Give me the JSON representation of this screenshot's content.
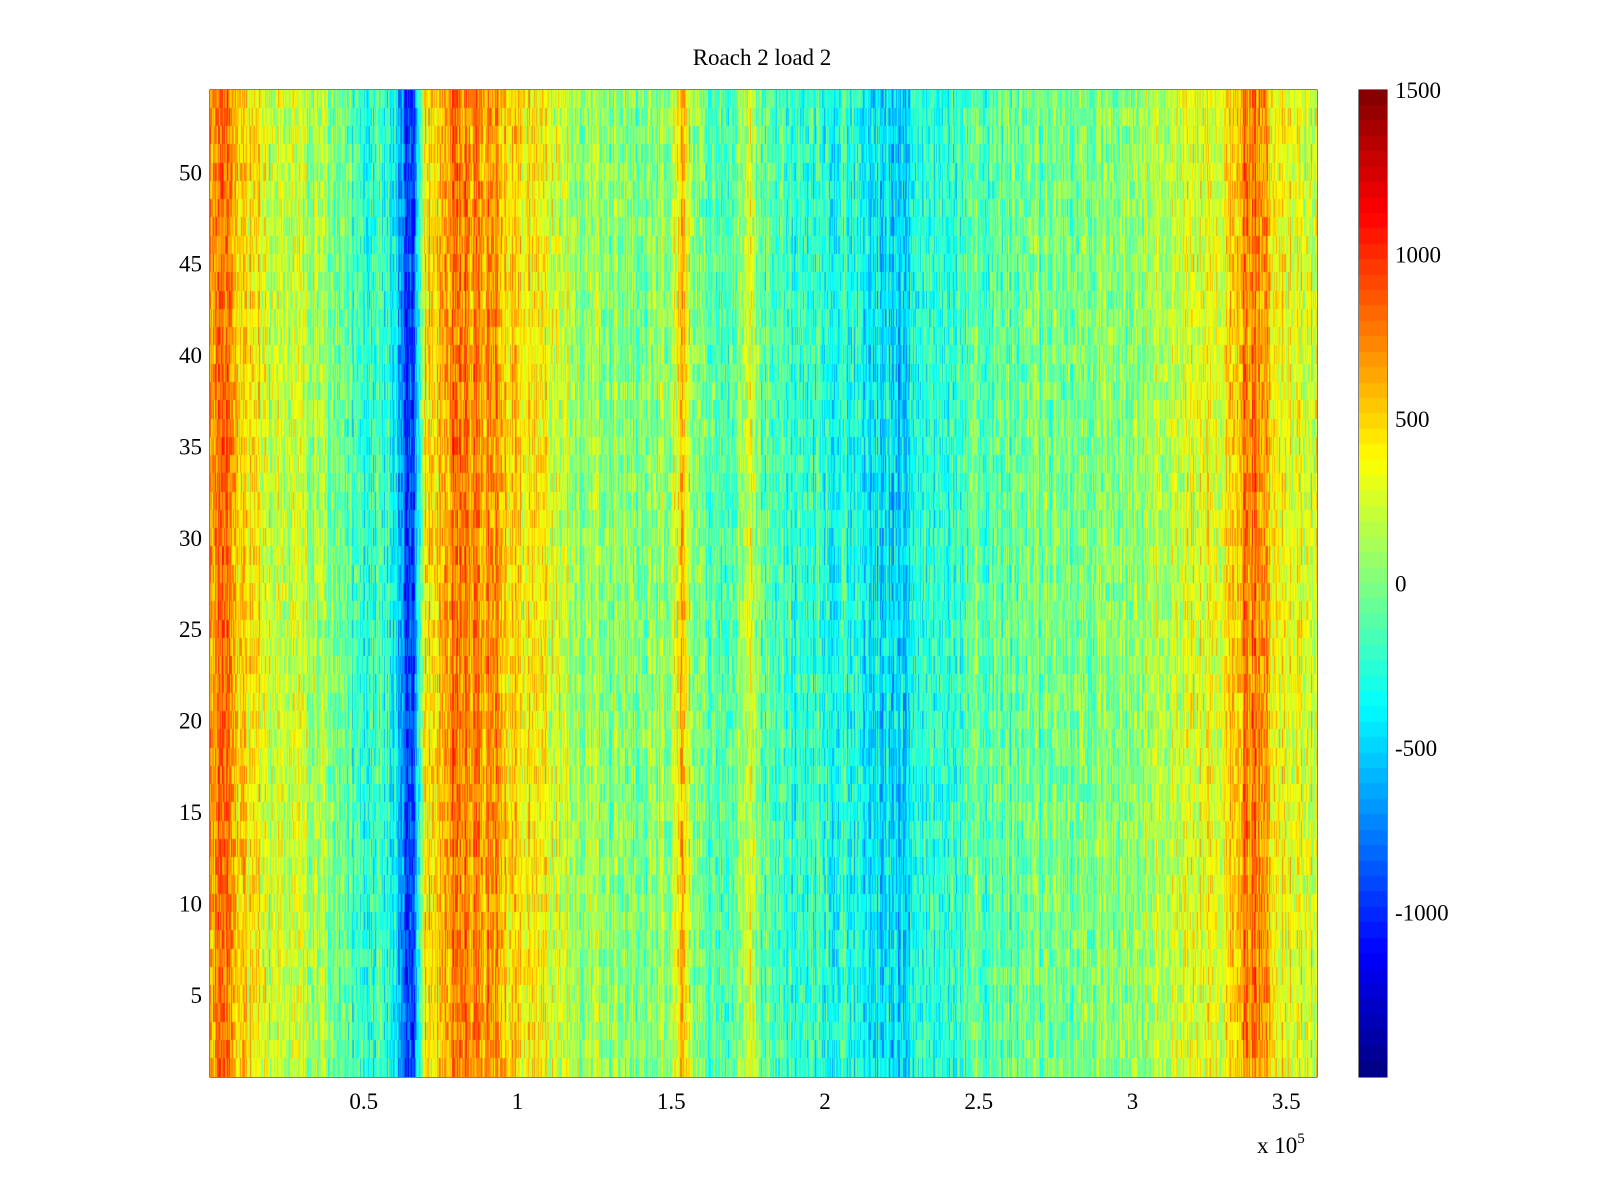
{
  "chart_data": {
    "type": "heatmap",
    "title": "Roach 2 load 2",
    "xlabel": "",
    "ylabel": "",
    "x_exponent_label": {
      "prefix": "x 10",
      "exponent": "5"
    },
    "xlim": [
      0,
      3.6
    ],
    "ylim": [
      0.5,
      54.5
    ],
    "x_ticks": [
      0.5,
      1,
      1.5,
      2,
      2.5,
      3,
      3.5
    ],
    "x_tick_labels": [
      "0.5",
      "1",
      "1.5",
      "2",
      "2.5",
      "3",
      "3.5"
    ],
    "y_ticks": [
      5,
      10,
      15,
      20,
      25,
      30,
      35,
      40,
      45,
      50
    ],
    "y_tick_labels": [
      "5",
      "10",
      "15",
      "20",
      "25",
      "30",
      "35",
      "40",
      "45",
      "50"
    ],
    "rows": 54,
    "colormap": "jet",
    "colorbar": {
      "range": [
        -1500,
        1500
      ],
      "ticks": [
        1500,
        1000,
        500,
        0,
        -500,
        -1000
      ],
      "tick_labels": [
        "1500",
        "1000",
        "500",
        "0",
        "-500",
        "-1000"
      ]
    },
    "column_profile": [
      {
        "x": 0.0,
        "value": 650
      },
      {
        "x": 0.05,
        "value": 750
      },
      {
        "x": 0.1,
        "value": 500
      },
      {
        "x": 0.2,
        "value": 250
      },
      {
        "x": 0.3,
        "value": 150
      },
      {
        "x": 0.4,
        "value": 0
      },
      {
        "x": 0.5,
        "value": -250
      },
      {
        "x": 0.55,
        "value": -200
      },
      {
        "x": 0.6,
        "value": -350
      },
      {
        "x": 0.64,
        "value": -950
      },
      {
        "x": 0.66,
        "value": -900
      },
      {
        "x": 0.7,
        "value": 450
      },
      {
        "x": 0.8,
        "value": 750
      },
      {
        "x": 0.9,
        "value": 700
      },
      {
        "x": 1.0,
        "value": 450
      },
      {
        "x": 1.1,
        "value": 300
      },
      {
        "x": 1.2,
        "value": 100
      },
      {
        "x": 1.4,
        "value": 0
      },
      {
        "x": 1.5,
        "value": 100
      },
      {
        "x": 1.54,
        "value": 650
      },
      {
        "x": 1.57,
        "value": 50
      },
      {
        "x": 1.7,
        "value": -150
      },
      {
        "x": 1.75,
        "value": 300
      },
      {
        "x": 1.8,
        "value": -150
      },
      {
        "x": 2.0,
        "value": -250
      },
      {
        "x": 2.1,
        "value": -300
      },
      {
        "x": 2.25,
        "value": -500
      },
      {
        "x": 2.3,
        "value": -300
      },
      {
        "x": 2.5,
        "value": -100
      },
      {
        "x": 2.8,
        "value": 0
      },
      {
        "x": 3.0,
        "value": 100
      },
      {
        "x": 3.2,
        "value": 250
      },
      {
        "x": 3.3,
        "value": 350
      },
      {
        "x": 3.38,
        "value": 800
      },
      {
        "x": 3.42,
        "value": 700
      },
      {
        "x": 3.5,
        "value": 350
      },
      {
        "x": 3.6,
        "value": 300
      }
    ]
  }
}
